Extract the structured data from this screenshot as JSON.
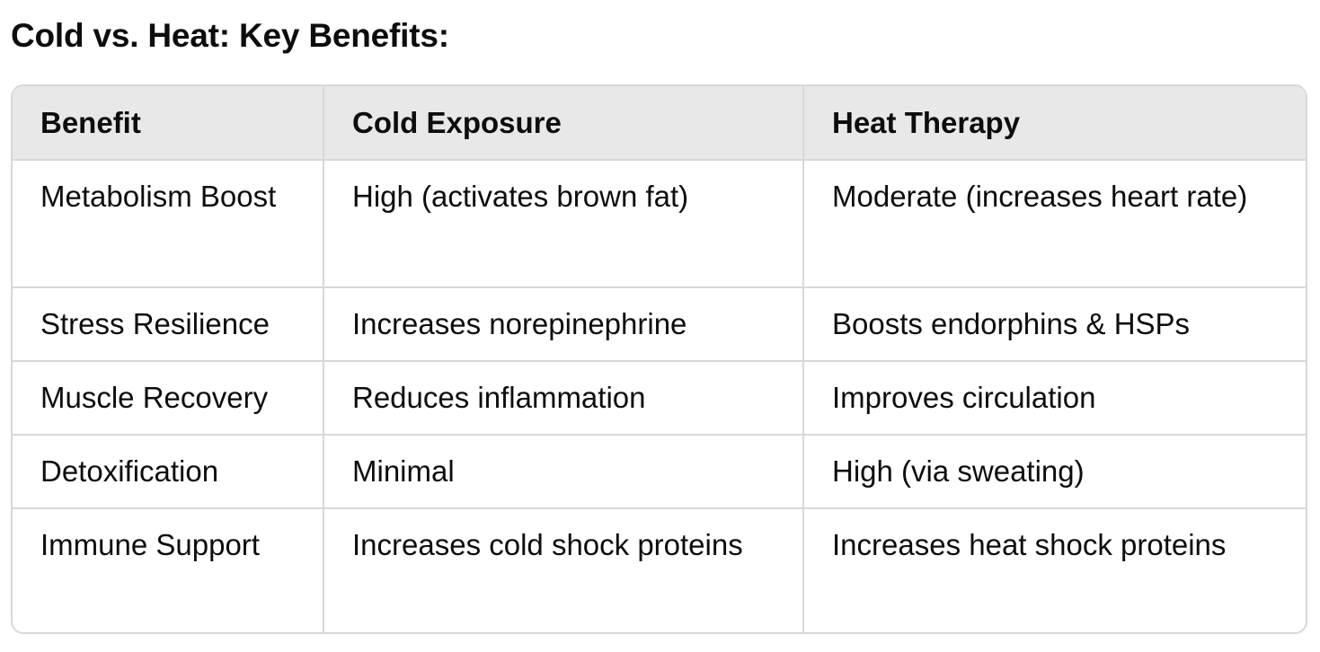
{
  "heading": "Cold vs. Heat: Key Benefits:",
  "table": {
    "headers": [
      "Benefit",
      "Cold Exposure",
      "Heat Therapy"
    ],
    "rows": [
      [
        "Metabolism Boost",
        "High (activates brown fat)",
        "Moderate (increases heart rate)"
      ],
      [
        "Stress Resilience",
        "Increases norepinephrine",
        "Boosts endorphins & HSPs"
      ],
      [
        "Muscle Recovery",
        "Reduces inflammation",
        "Improves circulation"
      ],
      [
        "Detoxification",
        "Minimal",
        "High (via sweating)"
      ],
      [
        "Immune Support",
        "Increases cold shock proteins",
        "Increases heat shock proteins"
      ]
    ]
  }
}
